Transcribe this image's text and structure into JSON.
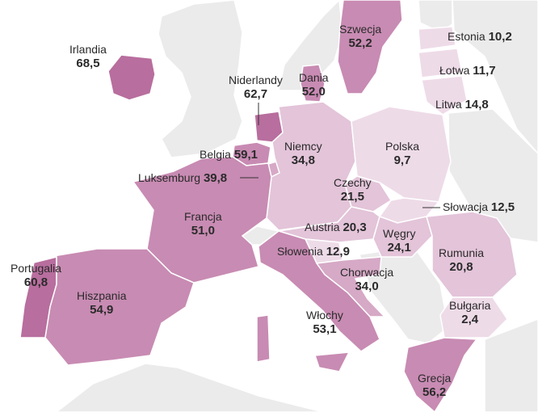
{
  "palette": {
    "background": "#ffffff",
    "non_eu": "#ebebeb",
    "border": "#ffffff",
    "scale": [
      "#eedbe8",
      "#e3c4d9",
      "#d6a9c6",
      "#c88bb3",
      "#b86e9e"
    ]
  },
  "countries": [
    {
      "id": "irlandia",
      "name": "Irlandia",
      "value": "68,5"
    },
    {
      "id": "szwecja",
      "name": "Szwecja",
      "value": "52,2"
    },
    {
      "id": "estonia",
      "name": "Estonia",
      "value": "10,2"
    },
    {
      "id": "lotwa",
      "name": "Łotwa",
      "value": "11,7"
    },
    {
      "id": "litwa",
      "name": "Litwa",
      "value": "14,8"
    },
    {
      "id": "dania",
      "name": "Dania",
      "value": "52,0"
    },
    {
      "id": "niderlandy",
      "name": "Niderlandy",
      "value": "62,7"
    },
    {
      "id": "belgia",
      "name": "Belgia",
      "value": "59,1"
    },
    {
      "id": "luksemburg",
      "name": "Luksemburg",
      "value": "39,8"
    },
    {
      "id": "niemcy",
      "name": "Niemcy",
      "value": "34,8"
    },
    {
      "id": "polska",
      "name": "Polska",
      "value": "9,7"
    },
    {
      "id": "czechy",
      "name": "Czechy",
      "value": "21,5"
    },
    {
      "id": "slowacja",
      "name": "Słowacja",
      "value": "12,5"
    },
    {
      "id": "francja",
      "name": "Francja",
      "value": "51,0"
    },
    {
      "id": "austria",
      "name": "Austria",
      "value": "20,3"
    },
    {
      "id": "wegry",
      "name": "Węgry",
      "value": "24,1"
    },
    {
      "id": "rumunia",
      "name": "Rumunia",
      "value": "20,8"
    },
    {
      "id": "slowenia",
      "name": "Słowenia",
      "value": "12,9"
    },
    {
      "id": "chorwacja",
      "name": "Chorwacja",
      "value": "34,0"
    },
    {
      "id": "portugalia",
      "name": "Portugalia",
      "value": "60,8"
    },
    {
      "id": "hiszpania",
      "name": "Hiszpania",
      "value": "54,9"
    },
    {
      "id": "bulgaria",
      "name": "Bułgaria",
      "value": "2,4"
    },
    {
      "id": "wlochy",
      "name": "Włochy",
      "value": "53,1"
    },
    {
      "id": "grecja",
      "name": "Grecja",
      "value": "56,2"
    }
  ]
}
